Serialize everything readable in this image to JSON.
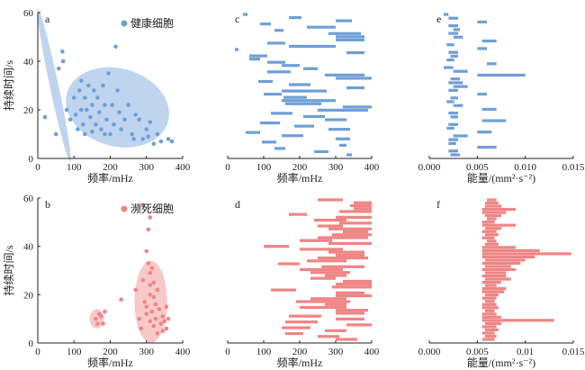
{
  "colors": {
    "healthy": "#6f9fd8",
    "healthy_fill": "#a9c6ea",
    "dying": "#ef8585",
    "dying_fill": "#f6b7b7",
    "axis": "#222222"
  },
  "chart_data": [
    {
      "panel": "a",
      "type": "scatter",
      "legend": "健康细胞",
      "xlabel": "频率/mHz",
      "ylabel": "持续时间/s",
      "xlim": [
        0,
        400
      ],
      "ylim": [
        0,
        60
      ],
      "xticks": [
        "0",
        "100",
        "200",
        "300",
        "400"
      ],
      "yticks": [
        "0",
        "20",
        "40",
        "60"
      ],
      "points": [
        [
          20,
          17
        ],
        [
          50,
          10
        ],
        [
          58,
          37
        ],
        [
          70,
          40
        ],
        [
          68,
          44
        ],
        [
          80,
          20
        ],
        [
          90,
          16
        ],
        [
          100,
          25
        ],
        [
          105,
          18
        ],
        [
          110,
          12
        ],
        [
          115,
          28
        ],
        [
          120,
          20
        ],
        [
          120,
          32
        ],
        [
          125,
          14
        ],
        [
          130,
          25
        ],
        [
          130,
          10
        ],
        [
          135,
          20
        ],
        [
          140,
          30
        ],
        [
          145,
          17
        ],
        [
          150,
          22
        ],
        [
          150,
          11
        ],
        [
          155,
          28
        ],
        [
          160,
          14
        ],
        [
          165,
          25
        ],
        [
          170,
          19
        ],
        [
          175,
          12
        ],
        [
          180,
          30
        ],
        [
          185,
          22
        ],
        [
          185,
          10
        ],
        [
          190,
          16
        ],
        [
          195,
          35
        ],
        [
          200,
          10
        ],
        [
          205,
          22
        ],
        [
          210,
          14
        ],
        [
          215,
          46
        ],
        [
          220,
          28
        ],
        [
          225,
          19
        ],
        [
          230,
          12
        ],
        [
          240,
          16
        ],
        [
          250,
          22
        ],
        [
          260,
          10
        ],
        [
          265,
          8
        ],
        [
          270,
          18
        ],
        [
          280,
          16
        ],
        [
          290,
          8
        ],
        [
          300,
          12
        ],
        [
          305,
          9
        ],
        [
          310,
          15
        ],
        [
          320,
          6
        ],
        [
          330,
          10
        ],
        [
          340,
          7
        ],
        [
          360,
          8
        ],
        [
          370,
          7
        ]
      ],
      "ellipses": [
        {
          "cx": 45,
          "cy": 30,
          "rx": 12,
          "ry": 32,
          "angle_deg": 12
        },
        {
          "cx": 220,
          "cy": 21,
          "rx": 145,
          "ry": 16,
          "angle_deg": -16
        }
      ]
    },
    {
      "panel": "c",
      "type": "range-bar",
      "xlabel": "频率/mHz",
      "xlim": [
        0,
        400
      ],
      "xticks": [
        "0",
        "100",
        "200",
        "300",
        "400"
      ],
      "bars": [
        [
          42,
          55
        ],
        [
          170,
          205
        ],
        [
          300,
          345
        ],
        [
          90,
          120
        ],
        [
          220,
          300
        ],
        [
          130,
          155
        ],
        [
          280,
          370
        ],
        [
          300,
          380
        ],
        [
          300,
          380
        ],
        [
          110,
          160
        ],
        [
          170,
          300
        ],
        [
          20,
          30
        ],
        [
          330,
          380
        ],
        [
          60,
          110
        ],
        [
          60,
          90
        ],
        [
          110,
          160
        ],
        [
          150,
          200
        ],
        [
          210,
          250
        ],
        [
          110,
          175
        ],
        [
          270,
          380
        ],
        [
          300,
          400
        ],
        [
          85,
          125
        ],
        [
          170,
          230
        ],
        [
          330,
          380
        ],
        [
          150,
          275
        ],
        [
          100,
          150
        ],
        [
          155,
          220
        ],
        [
          150,
          300
        ],
        [
          160,
          260
        ],
        [
          320,
          400
        ],
        [
          250,
          390
        ],
        [
          120,
          180
        ],
        [
          210,
          270
        ],
        [
          270,
          330
        ],
        [
          90,
          145
        ],
        [
          185,
          240
        ],
        [
          280,
          340
        ],
        [
          50,
          90
        ],
        [
          150,
          210
        ],
        [
          300,
          340
        ],
        [
          95,
          135
        ],
        [
          310,
          330
        ],
        [
          130,
          160
        ],
        [
          240,
          280
        ],
        [
          330,
          345
        ]
      ]
    },
    {
      "panel": "e",
      "type": "range-bar",
      "xlabel": "能量/(mm²·s⁻²)",
      "xlim": [
        0,
        0.015
      ],
      "xticks": [
        "0.000",
        "0.005",
        "0.010",
        "0.015"
      ],
      "bars": [
        [
          0.0015,
          0.002
        ],
        [
          0.002,
          0.003
        ],
        [
          0.005,
          0.006
        ],
        [
          0.002,
          0.003
        ],
        [
          0.0025,
          0.0032
        ],
        [
          0.002,
          0.003
        ],
        [
          0.0025,
          0.0035
        ],
        [
          0.0055,
          0.007
        ],
        [
          0.0018,
          0.0026
        ],
        [
          0.005,
          0.006
        ],
        [
          0.002,
          0.003
        ],
        [
          0.0022,
          0.003
        ],
        [
          0.0018,
          0.0026
        ],
        [
          0.006,
          0.007
        ],
        [
          0.0015,
          0.0025
        ],
        [
          0.0025,
          0.004
        ],
        [
          0.005,
          0.01
        ],
        [
          0.0022,
          0.0032
        ],
        [
          0.002,
          0.0035
        ],
        [
          0.0025,
          0.004
        ],
        [
          0.002,
          0.003
        ],
        [
          0.005,
          0.006
        ],
        [
          0.0022,
          0.003
        ],
        [
          0.0018,
          0.0026
        ],
        [
          0.0025,
          0.0035
        ],
        [
          0.0055,
          0.007
        ],
        [
          0.002,
          0.003
        ],
        [
          0.0022,
          0.003
        ],
        [
          0.0055,
          0.008
        ],
        [
          0.002,
          0.003
        ],
        [
          0.0018,
          0.0026
        ],
        [
          0.005,
          0.0065
        ],
        [
          0.0025,
          0.004
        ],
        [
          0.002,
          0.003
        ],
        [
          0.002,
          0.0028
        ],
        [
          0.005,
          0.007
        ],
        [
          0.002,
          0.003
        ],
        [
          0.0022,
          0.0032
        ]
      ]
    },
    {
      "panel": "b",
      "type": "scatter",
      "legend": "濒死细胞",
      "xlabel": "频率/mHz",
      "ylabel": "持续时间/s",
      "xlim": [
        0,
        400
      ],
      "ylim": [
        0,
        60
      ],
      "xticks": [
        "0",
        "100",
        "200",
        "300",
        "400"
      ],
      "yticks": [
        "0",
        "20",
        "40",
        "60"
      ],
      "points": [
        [
          160,
          10
        ],
        [
          165,
          8
        ],
        [
          170,
          12
        ],
        [
          175,
          11
        ],
        [
          185,
          13
        ],
        [
          180,
          8
        ],
        [
          230,
          18
        ],
        [
          270,
          22
        ],
        [
          280,
          10
        ],
        [
          285,
          6
        ],
        [
          290,
          57
        ],
        [
          290,
          26
        ],
        [
          295,
          17
        ],
        [
          300,
          15
        ],
        [
          300,
          12
        ],
        [
          300,
          38
        ],
        [
          305,
          33
        ],
        [
          305,
          47
        ],
        [
          310,
          29
        ],
        [
          310,
          24
        ],
        [
          310,
          20
        ],
        [
          310,
          9
        ],
        [
          310,
          52
        ],
        [
          315,
          31
        ],
        [
          315,
          13
        ],
        [
          320,
          25
        ],
        [
          320,
          19
        ],
        [
          320,
          7
        ],
        [
          325,
          16
        ],
        [
          325,
          10
        ],
        [
          330,
          22
        ],
        [
          330,
          4
        ],
        [
          335,
          14
        ],
        [
          340,
          8
        ],
        [
          345,
          11
        ],
        [
          345,
          5
        ],
        [
          350,
          9
        ],
        [
          355,
          15
        ],
        [
          355,
          6
        ],
        [
          360,
          10
        ]
      ],
      "ellipses": [
        {
          "cx": 163,
          "cy": 10,
          "rx": 20,
          "ry": 4,
          "angle_deg": 0
        },
        {
          "cx": 312,
          "cy": 17,
          "rx": 45,
          "ry": 17,
          "angle_deg": 0
        }
      ]
    },
    {
      "panel": "d",
      "type": "range-bar",
      "xlabel": "频率/mHz",
      "xlim": [
        0,
        400
      ],
      "xticks": [
        "0",
        "100",
        "200",
        "300",
        "400"
      ],
      "bars": [
        [
          250,
          320
        ],
        [
          350,
          400
        ],
        [
          340,
          400
        ],
        [
          350,
          400
        ],
        [
          310,
          400
        ],
        [
          170,
          220
        ],
        [
          300,
          400
        ],
        [
          240,
          330
        ],
        [
          310,
          400
        ],
        [
          250,
          320
        ],
        [
          280,
          400
        ],
        [
          320,
          390
        ],
        [
          290,
          400
        ],
        [
          250,
          390
        ],
        [
          200,
          290
        ],
        [
          280,
          400
        ],
        [
          100,
          170
        ],
        [
          200,
          320
        ],
        [
          280,
          380
        ],
        [
          300,
          380
        ],
        [
          250,
          390
        ],
        [
          220,
          330
        ],
        [
          140,
          200
        ],
        [
          260,
          380
        ],
        [
          200,
          320
        ],
        [
          230,
          340
        ],
        [
          270,
          330
        ],
        [
          230,
          300
        ],
        [
          320,
          400
        ],
        [
          300,
          400
        ],
        [
          290,
          400
        ],
        [
          120,
          190
        ],
        [
          300,
          380
        ],
        [
          300,
          400
        ],
        [
          230,
          330
        ],
        [
          190,
          340
        ],
        [
          270,
          330
        ],
        [
          200,
          330
        ],
        [
          300,
          390
        ],
        [
          300,
          380
        ],
        [
          170,
          260
        ],
        [
          300,
          380
        ],
        [
          160,
          250
        ],
        [
          330,
          400
        ],
        [
          150,
          230
        ],
        [
          270,
          330
        ],
        [
          160,
          210
        ],
        [
          250,
          310
        ],
        [
          300,
          360
        ]
      ]
    },
    {
      "panel": "f",
      "type": "range-bar",
      "xlabel": "能量/(mm²·s⁻²)",
      "xlim": [
        0,
        0.015
      ],
      "xticks": [
        "0.000",
        "0.005",
        "0.01",
        "0.015"
      ],
      "bars": [
        [
          0.006,
          0.007
        ],
        [
          0.0058,
          0.0072
        ],
        [
          0.0058,
          0.0075
        ],
        [
          0.0055,
          0.009
        ],
        [
          0.0055,
          0.008
        ],
        [
          0.0058,
          0.0075
        ],
        [
          0.006,
          0.007
        ],
        [
          0.0055,
          0.0068
        ],
        [
          0.0055,
          0.009
        ],
        [
          0.0058,
          0.0075
        ],
        [
          0.0055,
          0.007
        ],
        [
          0.0058,
          0.0072
        ],
        [
          0.0055,
          0.0068
        ],
        [
          0.006,
          0.007
        ],
        [
          0.0058,
          0.0072
        ],
        [
          0.0055,
          0.009
        ],
        [
          0.0055,
          0.0115
        ],
        [
          0.0055,
          0.0148
        ],
        [
          0.0055,
          0.011
        ],
        [
          0.0058,
          0.01
        ],
        [
          0.0055,
          0.0095
        ],
        [
          0.0058,
          0.0085
        ],
        [
          0.0055,
          0.009
        ],
        [
          0.0058,
          0.008
        ],
        [
          0.0055,
          0.008
        ],
        [
          0.0058,
          0.0085
        ],
        [
          0.0055,
          0.0075
        ],
        [
          0.0058,
          0.007
        ],
        [
          0.0055,
          0.008
        ],
        [
          0.0055,
          0.0078
        ],
        [
          0.0058,
          0.0072
        ],
        [
          0.0055,
          0.007
        ],
        [
          0.0058,
          0.0068
        ],
        [
          0.0055,
          0.007
        ],
        [
          0.0055,
          0.0072
        ],
        [
          0.0058,
          0.0068
        ],
        [
          0.0055,
          0.007
        ],
        [
          0.0055,
          0.0075
        ],
        [
          0.0055,
          0.013
        ],
        [
          0.0058,
          0.0075
        ],
        [
          0.0055,
          0.007
        ],
        [
          0.0058,
          0.0072
        ],
        [
          0.0055,
          0.0068
        ],
        [
          0.0058,
          0.007
        ],
        [
          0.0055,
          0.0068
        ]
      ]
    }
  ]
}
